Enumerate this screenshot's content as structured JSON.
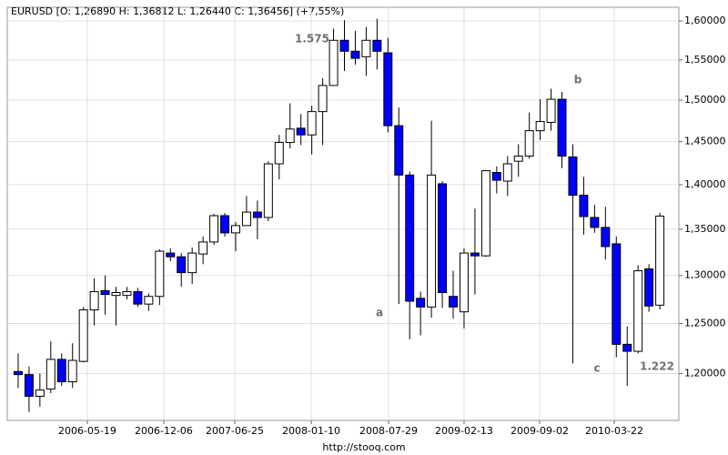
{
  "chart_data": {
    "type": "candlestick",
    "title": "EURUSD [O: 1,26890  H: 1,36812  L: 1,26440  C: 1,36456] (+7,55%)",
    "footer": "http://stooq.com",
    "log_scale": true,
    "grid": true,
    "up_color": "#ffffff",
    "down_color": "#0000ff",
    "categories": [
      null,
      null,
      null,
      null,
      null,
      null,
      null,
      null,
      null,
      null,
      null,
      null,
      null,
      null,
      null,
      null,
      null,
      null,
      null,
      null,
      null,
      null,
      null,
      null,
      null,
      null,
      null,
      null,
      null,
      null,
      null,
      null,
      null,
      null,
      null,
      null,
      null,
      null,
      null,
      null,
      null,
      null,
      null,
      null,
      null,
      null,
      null,
      null,
      null,
      null,
      null,
      null,
      null,
      null,
      null,
      null,
      null,
      null,
      null,
      null
    ],
    "open": [
      1.202,
      1.199,
      1.178,
      1.185,
      1.214,
      1.192,
      1.212,
      1.264,
      1.284,
      1.279,
      1.279,
      1.283,
      1.27,
      1.278,
      1.324,
      1.32,
      1.303,
      1.323,
      1.336,
      1.365,
      1.346,
      1.354,
      1.369,
      1.363,
      1.424,
      1.449,
      1.466,
      1.458,
      1.486,
      1.518,
      1.575,
      1.561,
      1.554,
      1.575,
      1.559,
      1.469,
      1.411,
      1.276,
      1.267,
      1.401,
      1.278,
      1.262,
      1.324,
      1.321,
      1.414,
      1.404,
      1.427,
      1.433,
      1.463,
      1.473,
      1.501,
      1.432,
      1.388,
      1.363,
      1.352,
      1.334,
      1.229,
      1.222,
      1.307,
      1.2689
    ],
    "high": [
      1.22,
      1.207,
      1.2,
      1.232,
      1.22,
      1.23,
      1.267,
      1.297,
      1.3,
      1.288,
      1.288,
      1.287,
      1.281,
      1.328,
      1.329,
      1.324,
      1.33,
      1.342,
      1.367,
      1.368,
      1.358,
      1.387,
      1.382,
      1.427,
      1.458,
      1.496,
      1.483,
      1.493,
      1.527,
      1.59,
      1.601,
      1.587,
      1.592,
      1.603,
      1.578,
      1.491,
      1.415,
      1.283,
      1.475,
      1.404,
      1.305,
      1.329,
      1.373,
      1.417,
      1.421,
      1.433,
      1.447,
      1.485,
      1.501,
      1.514,
      1.51,
      1.447,
      1.409,
      1.377,
      1.375,
      1.342,
      1.247,
      1.311,
      1.312,
      1.36812
    ],
    "low": [
      1.186,
      1.163,
      1.168,
      1.181,
      1.188,
      1.186,
      1.211,
      1.248,
      1.259,
      1.248,
      1.275,
      1.267,
      1.263,
      1.269,
      1.315,
      1.288,
      1.291,
      1.312,
      1.333,
      1.342,
      1.326,
      1.354,
      1.339,
      1.359,
      1.406,
      1.442,
      1.446,
      1.435,
      1.446,
      1.518,
      1.536,
      1.544,
      1.53,
      1.538,
      1.461,
      1.27,
      1.234,
      1.238,
      1.256,
      1.266,
      1.255,
      1.245,
      1.28,
      1.32,
      1.39,
      1.387,
      1.409,
      1.43,
      1.452,
      1.463,
      1.419,
      1.21,
      1.344,
      1.346,
      1.317,
      1.216,
      1.188,
      1.22,
      1.262,
      1.2644
    ],
    "close": [
      1.199,
      1.178,
      1.184,
      1.214,
      1.192,
      1.213,
      1.264,
      1.283,
      1.28,
      1.282,
      1.283,
      1.27,
      1.278,
      1.326,
      1.32,
      1.303,
      1.324,
      1.336,
      1.365,
      1.346,
      1.354,
      1.369,
      1.363,
      1.424,
      1.449,
      1.465,
      1.458,
      1.486,
      1.518,
      1.575,
      1.561,
      1.552,
      1.575,
      1.561,
      1.469,
      1.411,
      1.273,
      1.267,
      1.411,
      1.282,
      1.267,
      1.324,
      1.321,
      1.416,
      1.405,
      1.424,
      1.433,
      1.463,
      1.474,
      1.501,
      1.433,
      1.388,
      1.364,
      1.352,
      1.331,
      1.229,
      1.222,
      1.305,
      1.268,
      1.36456
    ],
    "ylim": [
      1.155,
      1.618
    ],
    "yticks": [
      {
        "value": 1.2,
        "label": "1,20000"
      },
      {
        "value": 1.25,
        "label": "1,25000"
      },
      {
        "value": 1.3,
        "label": "1,30000"
      },
      {
        "value": 1.35,
        "label": "1,35000"
      },
      {
        "value": 1.4,
        "label": "1,40000"
      },
      {
        "value": 1.45,
        "label": "1,45000"
      },
      {
        "value": 1.5,
        "label": "1,50000"
      },
      {
        "value": 1.55,
        "label": "1,55000"
      },
      {
        "value": 1.6,
        "label": "1,60000"
      }
    ],
    "xlim": [
      -1,
      60.75
    ],
    "xticks": [
      {
        "value": 6.36,
        "label": "2006-05-19"
      },
      {
        "value": 13.39,
        "label": "2006-12-06"
      },
      {
        "value": 19.92,
        "label": "2007-06-25"
      },
      {
        "value": 26.95,
        "label": "2008-01-10"
      },
      {
        "value": 34.06,
        "label": "2008-07-29"
      },
      {
        "value": 41.0,
        "label": "2009-02-13"
      },
      {
        "value": 47.95,
        "label": "2009-09-02"
      },
      {
        "value": 54.81,
        "label": "2010-03-22"
      }
    ],
    "annotations": [
      "1.575",
      "a",
      "b",
      "c",
      "1.222"
    ]
  }
}
